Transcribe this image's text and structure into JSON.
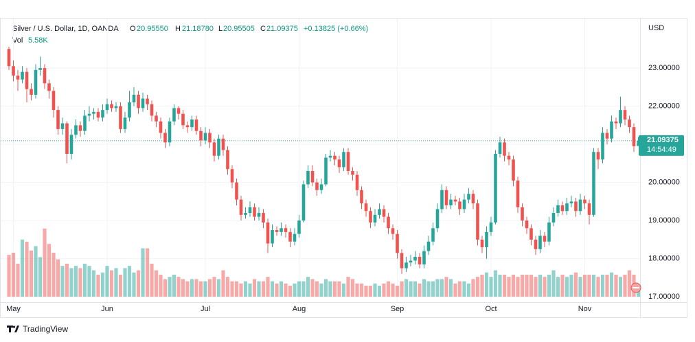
{
  "chart_data": {
    "type": "candlestick",
    "header": {
      "symbol": "Silver / U.S. Dollar, 1D, OANDA",
      "o_label": "O",
      "o": "20.95550",
      "h_label": "H",
      "h": "21.18780",
      "l_label": "L",
      "l": "20.95505",
      "c_label": "C",
      "c": "21.09375",
      "change": "+0.13825 (+0.66%)",
      "vol_label": "Vol",
      "vol": "5.58K"
    },
    "currency": "USD",
    "countdown": "14:54:49",
    "brand": "TradingView",
    "up_color": "#26a69a",
    "down_color": "#ef5350",
    "ylim": [
      16.86,
      24.28
    ],
    "yticks": [
      {
        "value": 17,
        "label": "17.00000"
      },
      {
        "value": 18,
        "label": "18.00000"
      },
      {
        "value": 19,
        "label": "19.00000"
      },
      {
        "value": 20,
        "label": "20.00000"
      },
      {
        "value": 21,
        "label": "21.00000"
      },
      {
        "value": 22,
        "label": "22.00000"
      },
      {
        "value": 23,
        "label": "23.00000"
      }
    ],
    "vlim": [
      0,
      40
    ],
    "grid": true,
    "categories": [
      null,
      "May",
      null,
      null,
      null,
      null,
      null,
      null,
      null,
      null,
      null,
      null,
      null,
      null,
      null,
      null,
      null,
      null,
      null,
      null,
      null,
      null,
      "Jun",
      null,
      null,
      null,
      null,
      null,
      null,
      null,
      null,
      null,
      null,
      null,
      null,
      null,
      null,
      null,
      null,
      null,
      null,
      null,
      null,
      null,
      "Jul",
      null,
      null,
      null,
      null,
      null,
      null,
      null,
      null,
      null,
      null,
      null,
      null,
      null,
      null,
      null,
      null,
      null,
      null,
      null,
      null,
      "Aug",
      null,
      null,
      null,
      null,
      null,
      null,
      null,
      null,
      null,
      null,
      null,
      null,
      null,
      null,
      null,
      null,
      null,
      null,
      null,
      null,
      null,
      "Sep",
      null,
      null,
      null,
      null,
      null,
      null,
      null,
      null,
      null,
      null,
      null,
      null,
      null,
      null,
      null,
      null,
      null,
      null,
      null,
      null,
      "Oct",
      null,
      null,
      null,
      null,
      null,
      null,
      null,
      null,
      null,
      null,
      null,
      null,
      null,
      null,
      null,
      null,
      null,
      null,
      null,
      null,
      "Nov",
      null,
      null,
      null,
      null,
      null,
      null,
      null,
      null,
      null,
      null,
      null,
      null
    ],
    "open": [
      23.5,
      23.05,
      22.8,
      22.7,
      22.9,
      22.45,
      22.3,
      22.95,
      23.0,
      22.6,
      22.4,
      21.9,
      21.4,
      21.55,
      20.75,
      21.25,
      21.5,
      21.35,
      21.75,
      21.8,
      21.85,
      21.7,
      21.9,
      22.05,
      21.95,
      22.0,
      21.4,
      21.7,
      22.1,
      22.3,
      21.95,
      22.2,
      22.05,
      21.75,
      21.6,
      21.3,
      21.05,
      21.6,
      21.95,
      21.8,
      21.5,
      21.45,
      21.65,
      21.35,
      21.1,
      21.3,
      21.05,
      20.7,
      21.15,
      20.85,
      20.35,
      20.0,
      19.55,
      19.15,
      19.2,
      19.35,
      19.1,
      19.2,
      18.95,
      18.4,
      18.75,
      18.7,
      18.8,
      18.7,
      18.45,
      18.65,
      19.0,
      19.95,
      20.3,
      20.0,
      19.8,
      19.95,
      20.65,
      20.7,
      20.6,
      20.4,
      20.8,
      20.3,
      20.2,
      19.8,
      19.45,
      19.25,
      18.95,
      19.15,
      19.3,
      19.1,
      18.8,
      18.65,
      18.15,
      17.75,
      17.9,
      17.95,
      18.05,
      17.85,
      18.2,
      18.45,
      18.8,
      19.3,
      19.8,
      19.4,
      19.55,
      19.5,
      19.3,
      19.55,
      19.7,
      19.45,
      18.5,
      18.3,
      18.7,
      18.95,
      20.75,
      21.05,
      20.7,
      20.6,
      20.05,
      19.35,
      19.0,
      18.8,
      18.5,
      18.25,
      18.6,
      18.45,
      18.95,
      19.2,
      19.4,
      19.25,
      19.45,
      19.5,
      19.25,
      19.55,
      19.45,
      19.15,
      20.8,
      20.6,
      21.3,
      21.15,
      21.6,
      21.55,
      21.9,
      21.65,
      21.45,
      20.9555
    ],
    "high": [
      23.56,
      23.2,
      22.95,
      23.05,
      23.0,
      22.6,
      23.1,
      23.3,
      23.1,
      22.7,
      22.5,
      22.0,
      21.7,
      21.6,
      21.4,
      21.65,
      21.6,
      21.9,
      22.0,
      21.95,
      21.95,
      22.05,
      22.2,
      22.15,
      22.1,
      22.1,
      21.85,
      22.4,
      22.5,
      22.4,
      22.35,
      22.3,
      22.15,
      21.85,
      21.7,
      21.4,
      21.7,
      22.05,
      22.0,
      21.9,
      21.6,
      21.75,
      21.75,
      21.45,
      21.45,
      21.4,
      21.15,
      21.25,
      21.25,
      20.95,
      20.45,
      20.1,
      19.65,
      19.35,
      19.5,
      19.45,
      19.35,
      19.3,
      19.05,
      18.9,
      18.85,
      18.95,
      18.9,
      18.8,
      18.8,
      19.15,
      20.05,
      20.45,
      20.45,
      20.1,
      20.1,
      20.75,
      20.85,
      20.8,
      20.7,
      20.9,
      20.9,
      20.4,
      20.3,
      19.9,
      19.55,
      19.35,
      19.3,
      19.45,
      19.4,
      19.2,
      18.9,
      18.75,
      18.25,
      18.05,
      18.1,
      18.2,
      18.15,
      18.35,
      18.6,
      18.95,
      19.45,
      19.95,
      19.9,
      19.7,
      19.65,
      19.6,
      19.7,
      19.85,
      19.8,
      19.55,
      18.6,
      18.85,
      19.1,
      20.85,
      21.2,
      21.15,
      20.8,
      20.7,
      20.15,
      19.45,
      19.1,
      18.9,
      18.6,
      18.75,
      18.7,
      19.1,
      19.35,
      19.55,
      19.5,
      19.6,
      19.65,
      19.6,
      19.7,
      19.65,
      19.55,
      20.9,
      20.9,
      21.45,
      21.4,
      21.75,
      21.7,
      22.25,
      22.0,
      21.75,
      21.55,
      21.1878
    ],
    "low": [
      22.95,
      22.65,
      22.4,
      22.6,
      22.1,
      22.15,
      22.2,
      22.8,
      22.45,
      22.2,
      21.7,
      21.25,
      21.25,
      20.5,
      20.6,
      21.15,
      21.2,
      21.25,
      21.6,
      21.65,
      21.6,
      21.6,
      21.8,
      21.85,
      21.85,
      21.3,
      21.3,
      21.6,
      22.0,
      21.8,
      21.85,
      21.9,
      21.6,
      21.45,
      21.15,
      20.9,
      20.95,
      21.5,
      21.65,
      21.4,
      21.3,
      21.35,
      21.25,
      20.95,
      21.0,
      20.9,
      20.55,
      20.6,
      20.7,
      20.2,
      19.85,
      19.4,
      19.0,
      19.05,
      19.1,
      19.0,
      19.0,
      18.8,
      18.15,
      18.3,
      18.6,
      18.6,
      18.55,
      18.3,
      18.35,
      18.55,
      18.95,
      19.85,
      19.9,
      19.65,
      19.7,
      19.9,
      20.55,
      20.45,
      20.25,
      20.3,
      20.2,
      20.05,
      19.65,
      19.3,
      19.1,
      18.8,
      18.85,
      19.05,
      18.95,
      18.65,
      18.5,
      18.0,
      17.6,
      17.65,
      17.8,
      17.85,
      17.75,
      17.75,
      18.1,
      18.35,
      18.7,
      19.2,
      19.3,
      19.3,
      19.4,
      19.15,
      19.2,
      19.45,
      19.3,
      18.35,
      18.15,
      18.0,
      18.6,
      18.9,
      20.65,
      20.55,
      20.45,
      19.9,
      19.2,
      18.85,
      18.65,
      18.35,
      18.1,
      18.15,
      18.3,
      18.35,
      18.85,
      19.1,
      19.15,
      19.15,
      19.35,
      19.1,
      19.15,
      19.3,
      18.9,
      19.1,
      20.35,
      20.5,
      21.0,
      21.05,
      21.4,
      21.45,
      21.5,
      21.3,
      20.8,
      20.95505
    ],
    "close": [
      23.05,
      22.8,
      22.7,
      22.9,
      22.45,
      22.3,
      22.95,
      23.0,
      22.6,
      22.4,
      21.9,
      21.4,
      21.55,
      20.75,
      21.25,
      21.5,
      21.35,
      21.75,
      21.8,
      21.85,
      21.7,
      21.9,
      22.05,
      21.95,
      22.0,
      21.4,
      21.7,
      22.1,
      22.3,
      21.95,
      22.2,
      22.05,
      21.75,
      21.6,
      21.3,
      21.05,
      21.6,
      21.95,
      21.8,
      21.5,
      21.45,
      21.65,
      21.35,
      21.1,
      21.3,
      21.05,
      20.7,
      21.15,
      20.85,
      20.35,
      20.0,
      19.55,
      19.15,
      19.2,
      19.35,
      19.1,
      19.2,
      18.95,
      18.4,
      18.75,
      18.7,
      18.8,
      18.7,
      18.45,
      18.65,
      19.0,
      19.95,
      20.3,
      20.0,
      19.8,
      19.95,
      20.65,
      20.7,
      20.6,
      20.4,
      20.8,
      20.3,
      20.2,
      19.8,
      19.45,
      19.25,
      18.95,
      19.15,
      19.3,
      19.1,
      18.8,
      18.65,
      18.15,
      17.75,
      17.9,
      17.95,
      18.05,
      17.85,
      18.2,
      18.45,
      18.8,
      19.3,
      19.8,
      19.4,
      19.55,
      19.5,
      19.3,
      19.55,
      19.7,
      19.45,
      18.5,
      18.3,
      18.7,
      18.95,
      20.75,
      21.05,
      20.7,
      20.6,
      20.05,
      19.35,
      19.0,
      18.8,
      18.5,
      18.25,
      18.6,
      18.45,
      18.95,
      19.2,
      19.4,
      19.25,
      19.45,
      19.5,
      19.25,
      19.55,
      19.45,
      19.15,
      20.8,
      20.6,
      21.3,
      21.15,
      21.6,
      21.55,
      21.9,
      21.65,
      21.45,
      20.95,
      21.09375
    ],
    "volume": [
      19,
      20,
      15,
      26,
      25,
      21,
      23,
      18,
      31,
      24,
      20,
      17,
      14,
      15,
      13,
      14,
      13,
      15,
      14,
      12,
      10,
      11,
      14,
      12,
      13,
      10,
      13,
      14,
      11,
      12,
      22,
      22,
      15,
      12,
      10,
      8,
      9,
      10,
      9,
      8,
      7,
      8,
      8,
      7,
      7,
      8,
      9,
      8,
      12,
      9,
      7,
      7,
      6,
      7,
      6,
      8,
      7,
      7,
      9,
      7,
      6,
      7,
      6,
      5,
      6,
      7,
      7,
      9,
      8,
      7,
      6,
      8,
      7,
      7,
      7,
      6,
      9,
      8,
      6,
      6,
      5,
      5,
      6,
      5,
      6,
      7,
      6,
      5,
      7,
      8,
      7,
      7,
      6,
      8,
      7,
      7,
      8,
      8,
      9,
      8,
      6,
      7,
      7,
      6,
      8,
      9,
      10,
      11,
      9,
      12,
      10,
      10,
      9,
      10,
      9,
      10,
      10,
      10,
      9,
      10,
      9,
      10,
      12,
      9,
      10,
      9,
      10,
      11,
      9,
      10,
      10,
      10,
      9,
      10,
      10,
      11,
      10,
      9,
      10,
      12,
      10,
      5.58
    ]
  }
}
